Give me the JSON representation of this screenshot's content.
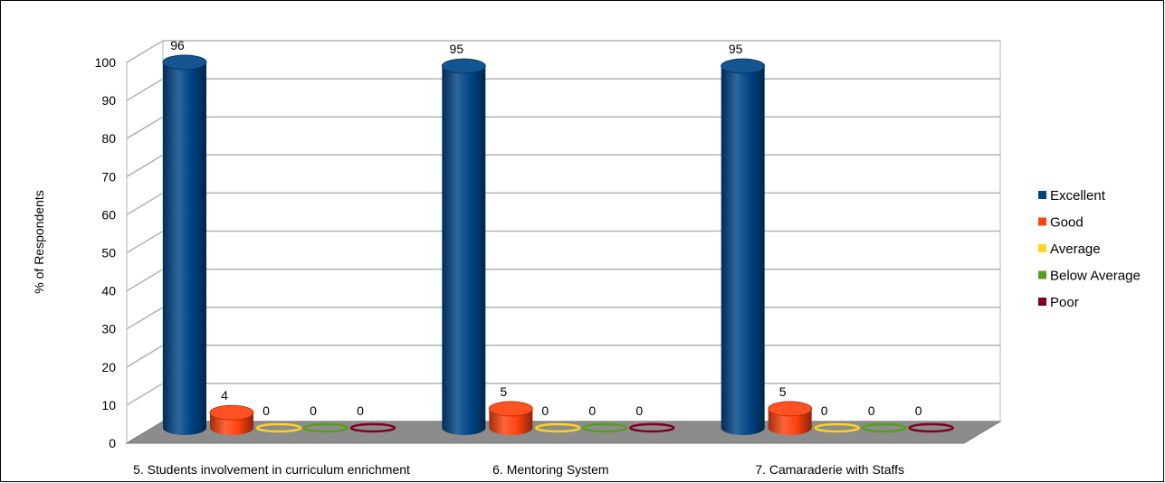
{
  "chart_data": {
    "type": "bar",
    "title": "",
    "xlabel": "",
    "ylabel": "% of Respondents",
    "ylim": [
      0,
      100
    ],
    "yticks": [
      0,
      10,
      20,
      30,
      40,
      50,
      60,
      70,
      80,
      90,
      100
    ],
    "grid": true,
    "legend_position": "right",
    "categories": [
      "5. Students involvement in curriculum enrichment",
      "6. Mentoring System",
      "7. Camaraderie with Staffs"
    ],
    "series": [
      {
        "name": "Excellent",
        "color": "#004586",
        "values": [
          96,
          95,
          95
        ]
      },
      {
        "name": "Good",
        "color": "#ff420e",
        "values": [
          4,
          5,
          5
        ]
      },
      {
        "name": "Average",
        "color": "#ffd320",
        "values": [
          0,
          0,
          0
        ]
      },
      {
        "name": "Below Average",
        "color": "#579d1c",
        "values": [
          0,
          0,
          0
        ]
      },
      {
        "name": "Poor",
        "color": "#7e0021",
        "values": [
          0,
          0,
          0
        ]
      }
    ]
  }
}
